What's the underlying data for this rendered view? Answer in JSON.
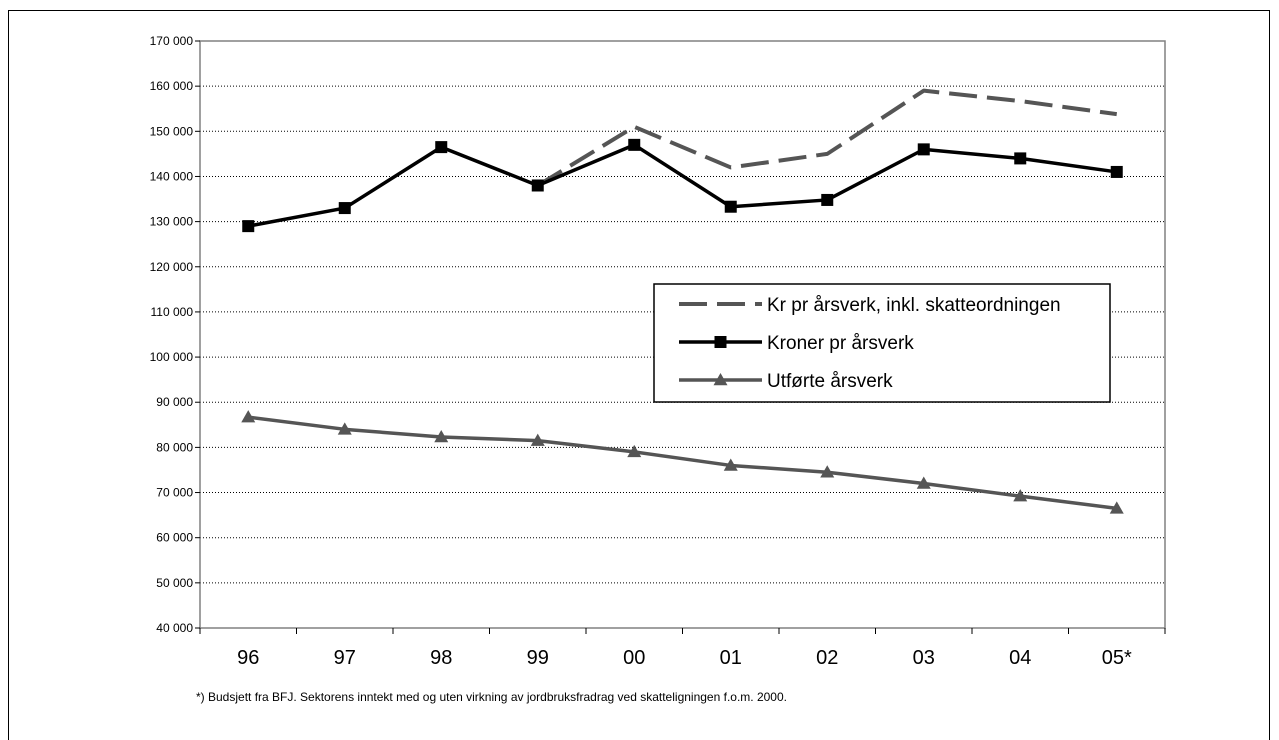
{
  "chart_data": {
    "type": "line",
    "categories": [
      "96",
      "97",
      "98",
      "99",
      "00",
      "01",
      "02",
      "03",
      "04",
      "05*"
    ],
    "ylim": [
      40000,
      170000
    ],
    "ytick_step": 10000,
    "yticks": [
      "40 000",
      "50 000",
      "60 000",
      "70 000",
      "80 000",
      "90 000",
      "100 000",
      "110 000",
      "120 000",
      "130 000",
      "140 000",
      "150 000",
      "160 000",
      "170 000"
    ],
    "grid": true,
    "legend_position": "right",
    "series": [
      {
        "name": "Kr pr årsverk, inkl. skatteordningen",
        "style": "dashed",
        "color": "#555555",
        "marker": "none",
        "values": [
          null,
          null,
          null,
          138000,
          151000,
          142000,
          145000,
          159000,
          156700,
          153800
        ]
      },
      {
        "name": "Kroner pr årsverk",
        "style": "solid",
        "color": "#000000",
        "marker": "square",
        "values": [
          129000,
          133000,
          146500,
          138000,
          147000,
          133300,
          134800,
          146000,
          144000,
          141000
        ]
      },
      {
        "name": "Utførte årsverk",
        "style": "solid",
        "color": "#555555",
        "marker": "triangle",
        "values": [
          86700,
          84000,
          82300,
          81500,
          79000,
          76000,
          74500,
          72000,
          69200,
          66500
        ]
      }
    ],
    "footnote": "*) Budsjett fra BFJ. Sektorens inntekt med og uten virkning av jordbruksfradrag ved skatteligningen f.o.m. 2000."
  }
}
